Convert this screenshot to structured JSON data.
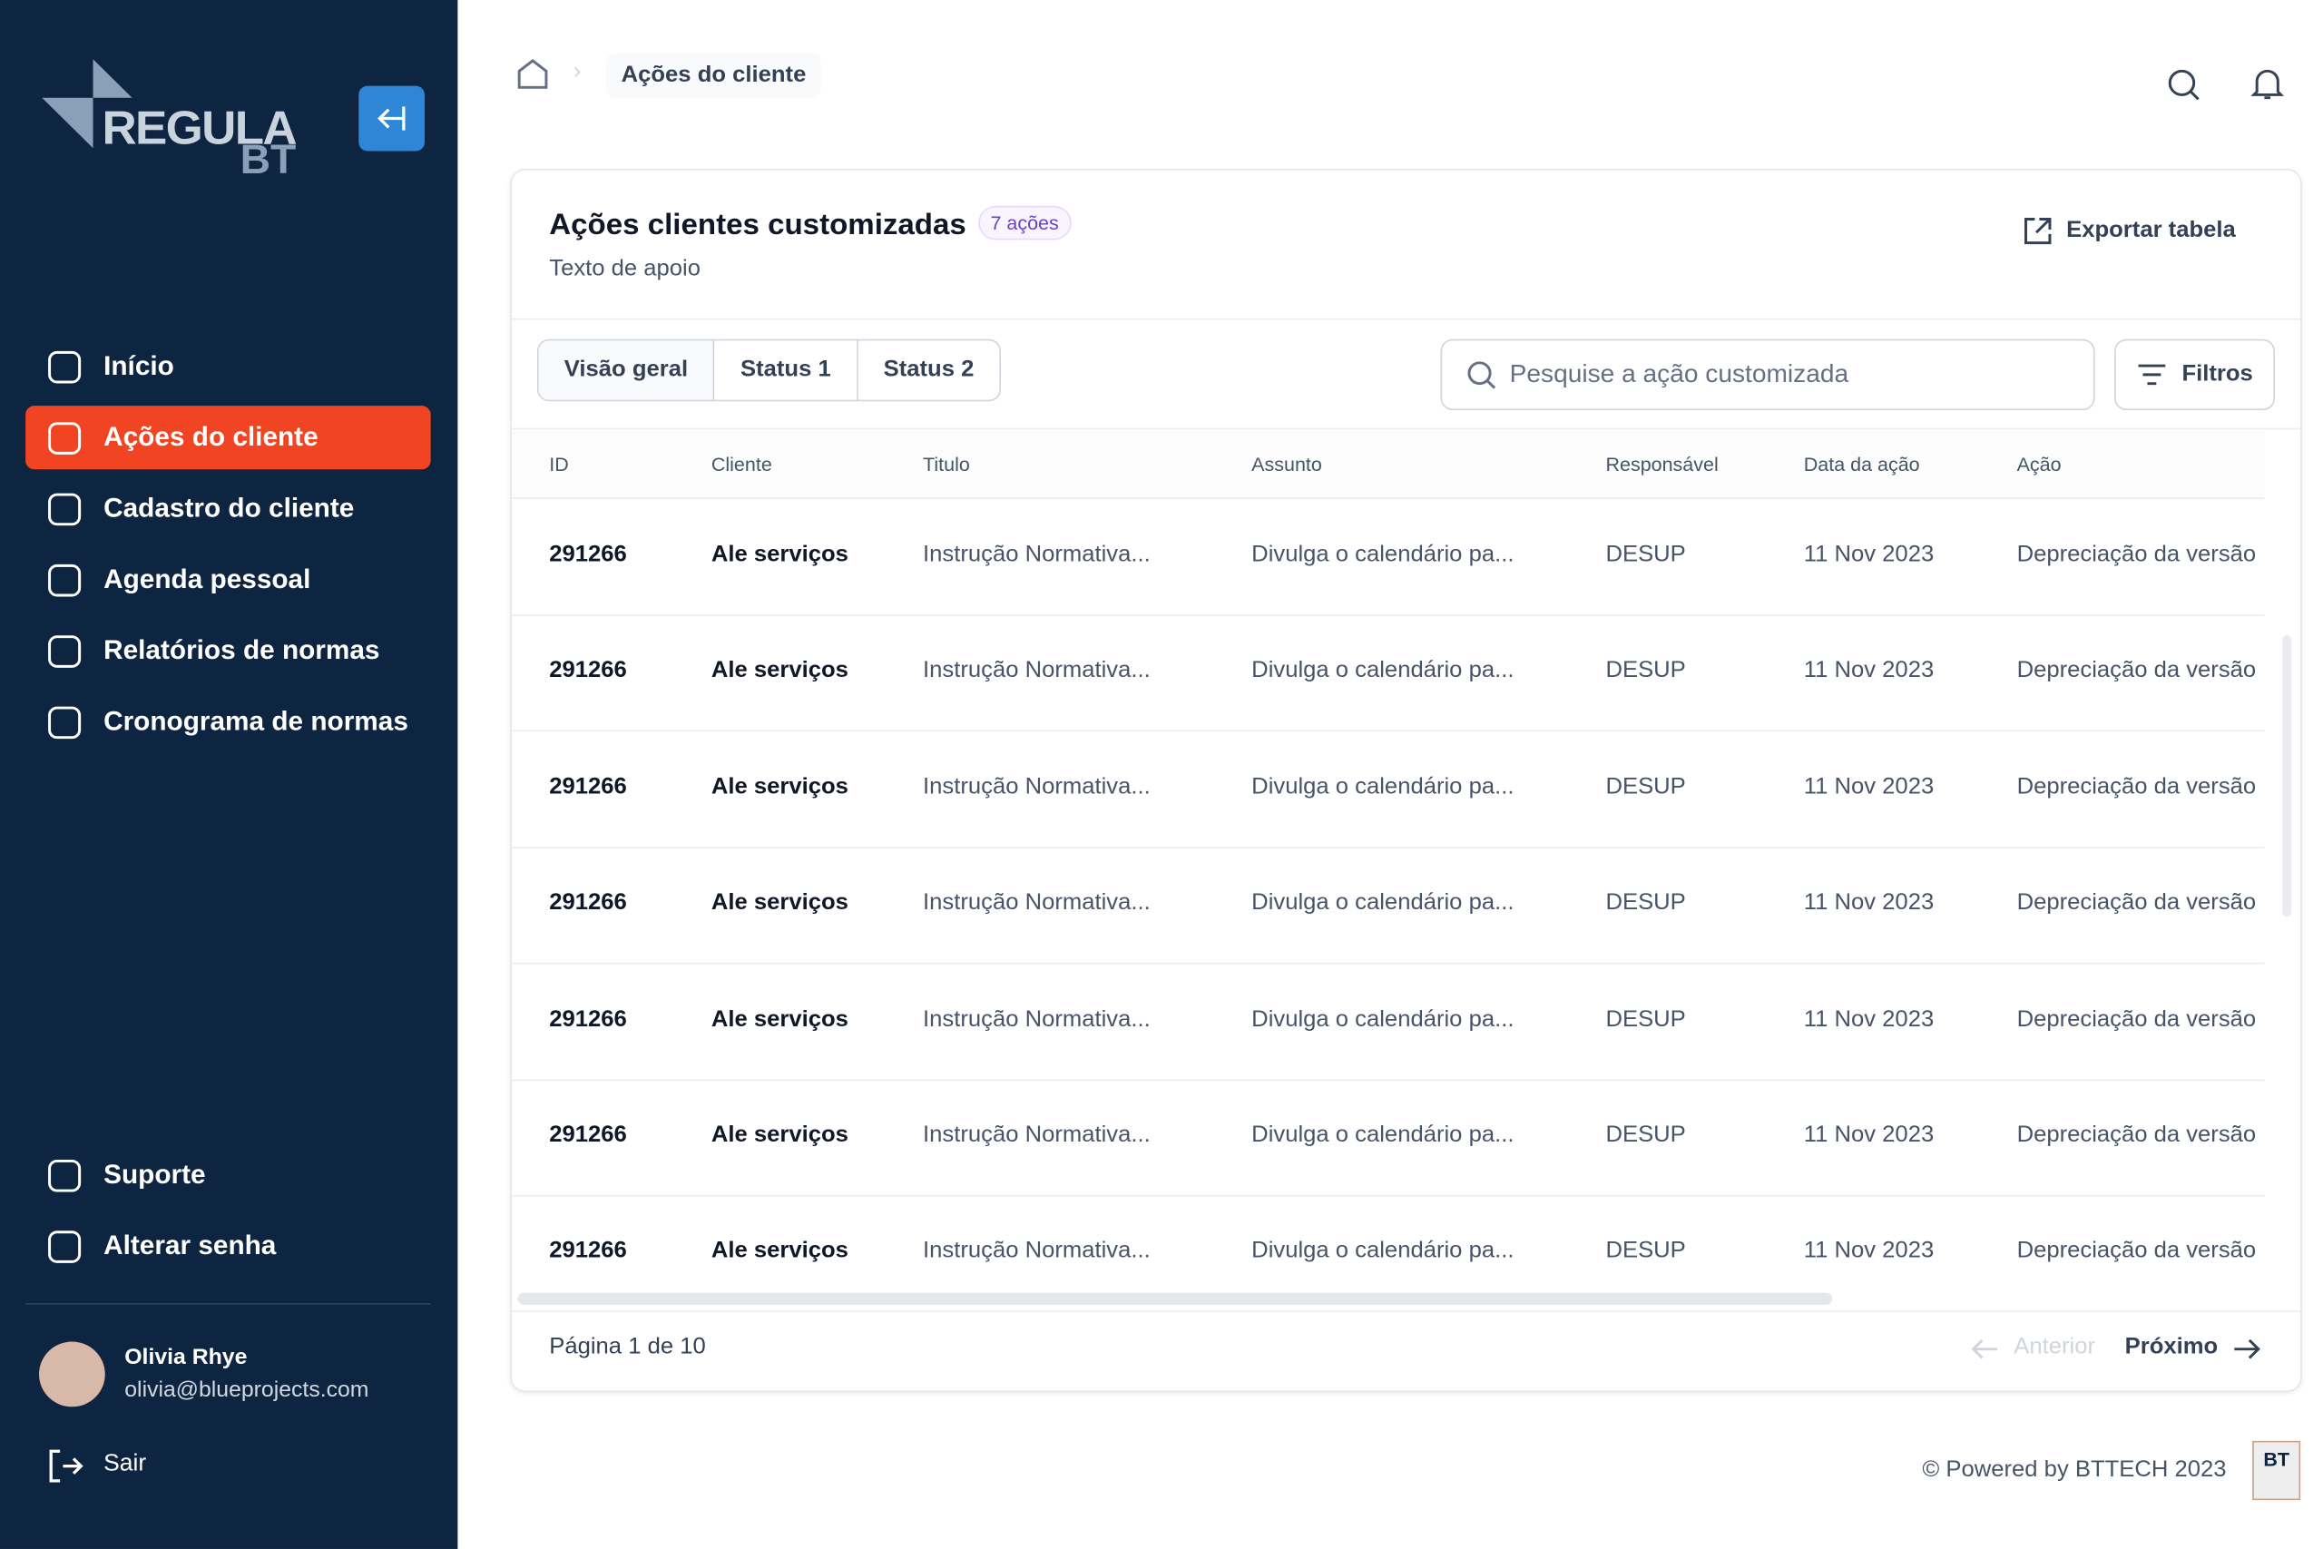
{
  "sidebar": {
    "logo": {
      "text": "REGULA",
      "sub": "BT"
    },
    "nav": [
      "Início",
      "Ações do cliente",
      "Cadastro do cliente",
      "Agenda pessoal",
      "Relatórios de normas",
      "Cronograma de normas"
    ],
    "active": 1,
    "footer_nav": [
      "Suporte",
      "Alterar senha"
    ],
    "user": {
      "name": "Olivia Rhye",
      "email": "olivia@blueprojects.com"
    },
    "logout": "Sair"
  },
  "breadcrumb": {
    "current": "Ações do cliente"
  },
  "card": {
    "title": "Ações clientes customizadas",
    "badge": "7 ações",
    "subtitle": "Texto de apoio",
    "export": "Exportar tabela",
    "tabs": [
      "Visão geral",
      "Status 1",
      "Status 2"
    ],
    "search_placeholder": "Pesquise a ação customizada",
    "filters": "Filtros",
    "table": {
      "columns": [
        "ID",
        "Cliente",
        "Titulo",
        "Assunto",
        "Responsável",
        "Data da ação",
        "Ação"
      ],
      "rows": [
        [
          "291266",
          "Ale serviços",
          "Instrução Normativa...",
          "Divulga o calendário pa...",
          "DESUP",
          "11 Nov 2023",
          "Depreciação da versão"
        ],
        [
          "291266",
          "Ale serviços",
          "Instrução Normativa...",
          "Divulga o calendário pa...",
          "DESUP",
          "11 Nov 2023",
          "Depreciação da versão"
        ],
        [
          "291266",
          "Ale serviços",
          "Instrução Normativa...",
          "Divulga o calendário pa...",
          "DESUP",
          "11 Nov 2023",
          "Depreciação da versão"
        ],
        [
          "291266",
          "Ale serviços",
          "Instrução Normativa...",
          "Divulga o calendário pa...",
          "DESUP",
          "11 Nov 2023",
          "Depreciação da versão"
        ],
        [
          "291266",
          "Ale serviços",
          "Instrução Normativa...",
          "Divulga o calendário pa...",
          "DESUP",
          "11 Nov 2023",
          "Depreciação da versão"
        ],
        [
          "291266",
          "Ale serviços",
          "Instrução Normativa...",
          "Divulga o calendário pa...",
          "DESUP",
          "11 Nov 2023",
          "Depreciação da versão"
        ],
        [
          "291266",
          "Ale serviços",
          "Instrução Normativa...",
          "Divulga o calendário pa...",
          "DESUP",
          "11 Nov 2023",
          "Depreciação da versão"
        ]
      ]
    },
    "pagination": {
      "page": "Página 1 de 10",
      "prev": "Anterior",
      "next": "Próximo"
    }
  },
  "footer": {
    "powered": "© Powered by BTTECH 2023",
    "badge": "BT"
  }
}
